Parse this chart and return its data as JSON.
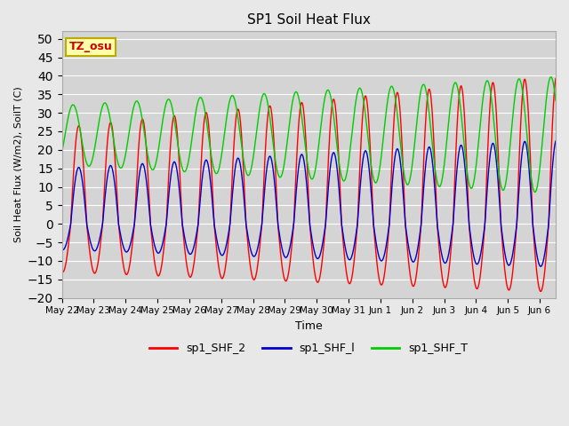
{
  "title": "SP1 Soil Heat Flux",
  "xlabel": "Time",
  "ylabel": "Soil Heat Flux (W/m2), SoilT (C)",
  "ylim": [
    -20,
    52
  ],
  "yticks": [
    -20,
    -15,
    -10,
    -5,
    0,
    5,
    10,
    15,
    20,
    25,
    30,
    35,
    40,
    45,
    50
  ],
  "tz_label": "TZ_osu",
  "legend": [
    "sp1_SHF_2",
    "sp1_SHF_l",
    "sp1_SHF_T"
  ],
  "line_colors": [
    "#ff0000",
    "#0000cc",
    "#00cc00"
  ],
  "fig_facecolor": "#e8e8e8",
  "ax_facecolor": "#d4d4d4",
  "total_days": 15.5,
  "tick_days": [
    0,
    1,
    2,
    3,
    4,
    5,
    6,
    7,
    8,
    9,
    10,
    11,
    12,
    13,
    14,
    15
  ],
  "tick_labels": [
    "May 22",
    "May 23",
    "May 24",
    "May 25",
    "May 26",
    "May 27",
    "May 28",
    "May 29",
    "May 30",
    "May 31",
    "Jun 1",
    "Jun 2",
    "Jun 3",
    "Jun 4",
    "Jun 5",
    "Jun 6"
  ]
}
